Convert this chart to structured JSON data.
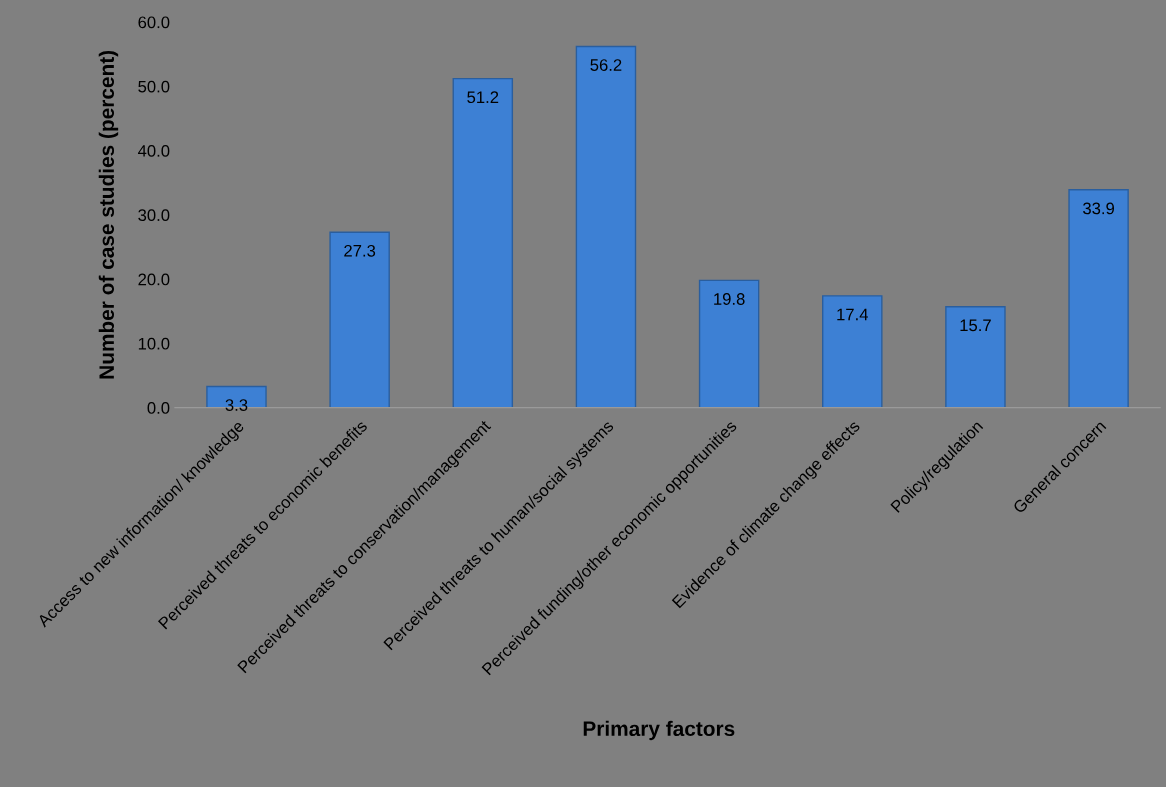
{
  "chart_data": {
    "type": "bar",
    "xlabel": "Primary factors",
    "ylabel": "Number of case studies (percent)",
    "categories": [
      "Access to new information/ knowledge",
      "Perceived threats to economic benefits",
      "Perceived threats to conservation/management",
      "Perceived threats to human/social systems",
      "Perceived funding/other economic opportunities",
      "Evidence of climate change effects",
      "Policy/regulation",
      "General concern"
    ],
    "values": [
      3.3,
      27.3,
      51.2,
      56.2,
      19.8,
      17.4,
      15.7,
      33.9
    ],
    "color": "#3d80d4",
    "data_labels": true,
    "ylim": [
      0,
      60
    ],
    "yticks": [
      {
        "value": 0,
        "label": "0.0"
      },
      {
        "value": 10,
        "label": "10.0"
      },
      {
        "value": 20,
        "label": "20.0"
      },
      {
        "value": 30,
        "label": "30.0"
      },
      {
        "value": 40,
        "label": "40.0"
      },
      {
        "value": 50,
        "label": "50.0"
      },
      {
        "value": 60,
        "label": "60.0"
      }
    ],
    "grid": false,
    "legend": false
  }
}
